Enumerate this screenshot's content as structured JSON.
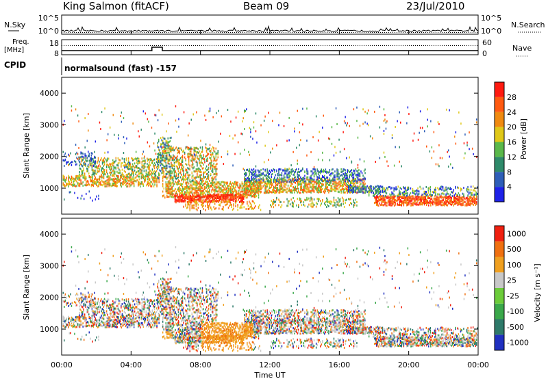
{
  "header": {
    "station": "King Salmon (fitACF)",
    "beam": "Beam 09",
    "date": "23/Jul/2010"
  },
  "noise_panel": {
    "left_label": "N.Sky",
    "right_label": "N.Search",
    "left_ticks": [
      "10^5",
      "10^0"
    ],
    "right_ticks": [
      "10^5",
      "10^0"
    ]
  },
  "freq_panel": {
    "left_label_line1": "Freq.",
    "left_label_line2": "[MHz]",
    "left_ticks": [
      "18",
      "8"
    ],
    "right_ticks": [
      "60",
      "0"
    ],
    "right_label": "Nave"
  },
  "cpid_panel": {
    "label": "CPID",
    "text": "normalsound (fast) -157"
  },
  "chart_data": [
    {
      "type": "heatmap",
      "title": "",
      "ylabel": "Slant Range [km]",
      "xlabel": "",
      "ylim": [
        180,
        4500
      ],
      "yticks": [
        "1000",
        "2000",
        "3000",
        "4000"
      ],
      "colorbar_label": "Power [dB]",
      "colorbar_ticks": [
        "4",
        "8",
        "12",
        "16",
        "20",
        "24",
        "28"
      ],
      "colorbar_range": [
        0,
        30
      ],
      "colors": [
        "#1e22e8",
        "#2e5eb8",
        "#2e8a6a",
        "#5ab84a",
        "#e0c818",
        "#f08a10",
        "#ff5a10",
        "#ff1a10"
      ]
    },
    {
      "type": "heatmap",
      "title": "",
      "ylabel": "Slant Range [km]",
      "xlabel": "Time UT",
      "ylim": [
        180,
        4500
      ],
      "yticks": [
        "1000",
        "2000",
        "3000",
        "4000"
      ],
      "xticks": [
        "00:00",
        "04:00",
        "08:00",
        "12:00",
        "16:00",
        "20:00",
        "00:00"
      ],
      "colorbar_label": "Velocity [m s⁻¹]",
      "colorbar_ticks": [
        "1000",
        "500",
        "100",
        "25",
        "-25",
        "-100",
        "-500",
        "-1000"
      ],
      "colors": [
        "#2030c0",
        "#2e7a6a",
        "#3aa84a",
        "#6ccc3a",
        "#c8c8c8",
        "#f0a020",
        "#f07010",
        "#f02010"
      ]
    }
  ]
}
